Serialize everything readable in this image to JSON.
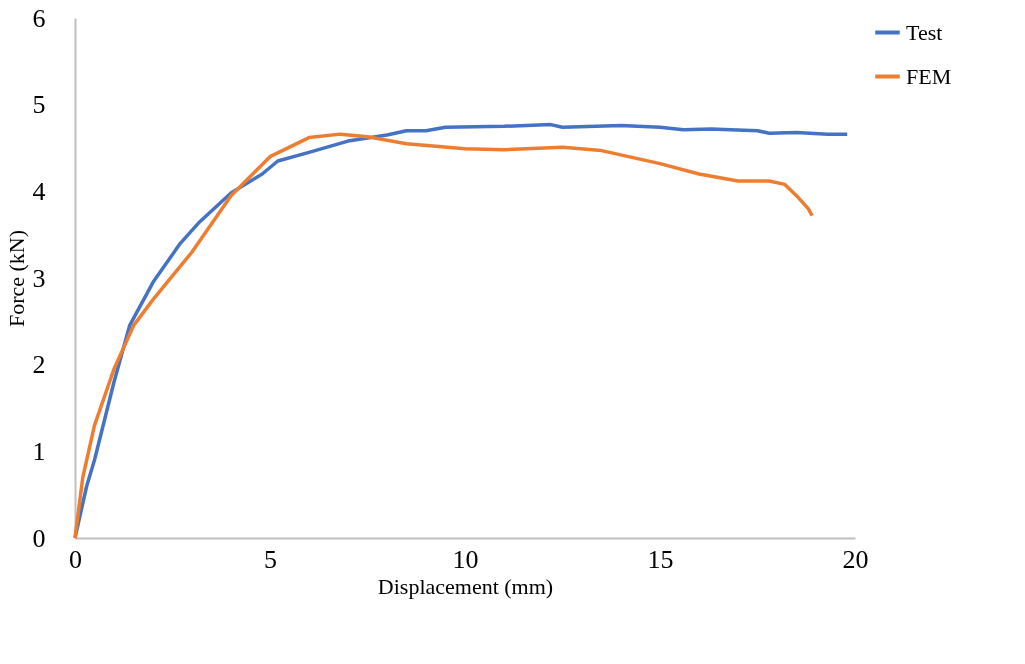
{
  "chart_data": {
    "type": "line",
    "xlabel": "Displacement (mm)",
    "ylabel": "Force (kN)",
    "xlim": [
      0,
      20
    ],
    "xticks": [
      0,
      5,
      10,
      15,
      20
    ],
    "ylim": [
      0,
      6
    ],
    "yticks": [
      0,
      1,
      2,
      3,
      4,
      5,
      6
    ],
    "grid": false,
    "legend": "right",
    "marker": "none",
    "line_style": "solid",
    "series": [
      {
        "name": "Test",
        "color": "#4472c4",
        "x": [
          0,
          0.3,
          0.5,
          1,
          1.4,
          2,
          2.7,
          3.2,
          4,
          4.8,
          5.2,
          6,
          7,
          8,
          8.5,
          9,
          9.5,
          11,
          12.2,
          12.5,
          14,
          15,
          15.6,
          16.3,
          17.5,
          17.8,
          18.5,
          19.3,
          19.8
        ],
        "values": [
          0,
          0.6,
          0.9,
          1.8,
          2.45,
          2.95,
          3.4,
          3.65,
          3.98,
          4.2,
          4.35,
          4.45,
          4.58,
          4.65,
          4.7,
          4.7,
          4.74,
          4.75,
          4.77,
          4.74,
          4.76,
          4.74,
          4.71,
          4.72,
          4.7,
          4.67,
          4.68,
          4.66,
          4.66
        ]
      },
      {
        "name": "FEM",
        "color": "#ed7d31",
        "x": [
          0,
          0.2,
          0.5,
          1,
          1.5,
          2,
          3,
          4,
          5,
          6,
          6.8,
          7.5,
          8.5,
          10,
          11,
          12.5,
          13.5,
          15,
          16,
          17,
          17.8,
          18.2,
          18.5,
          18.8,
          18.9
        ],
        "values": [
          0,
          0.7,
          1.3,
          1.95,
          2.45,
          2.75,
          3.3,
          3.95,
          4.4,
          4.62,
          4.66,
          4.63,
          4.55,
          4.49,
          4.48,
          4.51,
          4.47,
          4.32,
          4.2,
          4.12,
          4.12,
          4.08,
          3.95,
          3.8,
          3.72
        ]
      }
    ]
  }
}
